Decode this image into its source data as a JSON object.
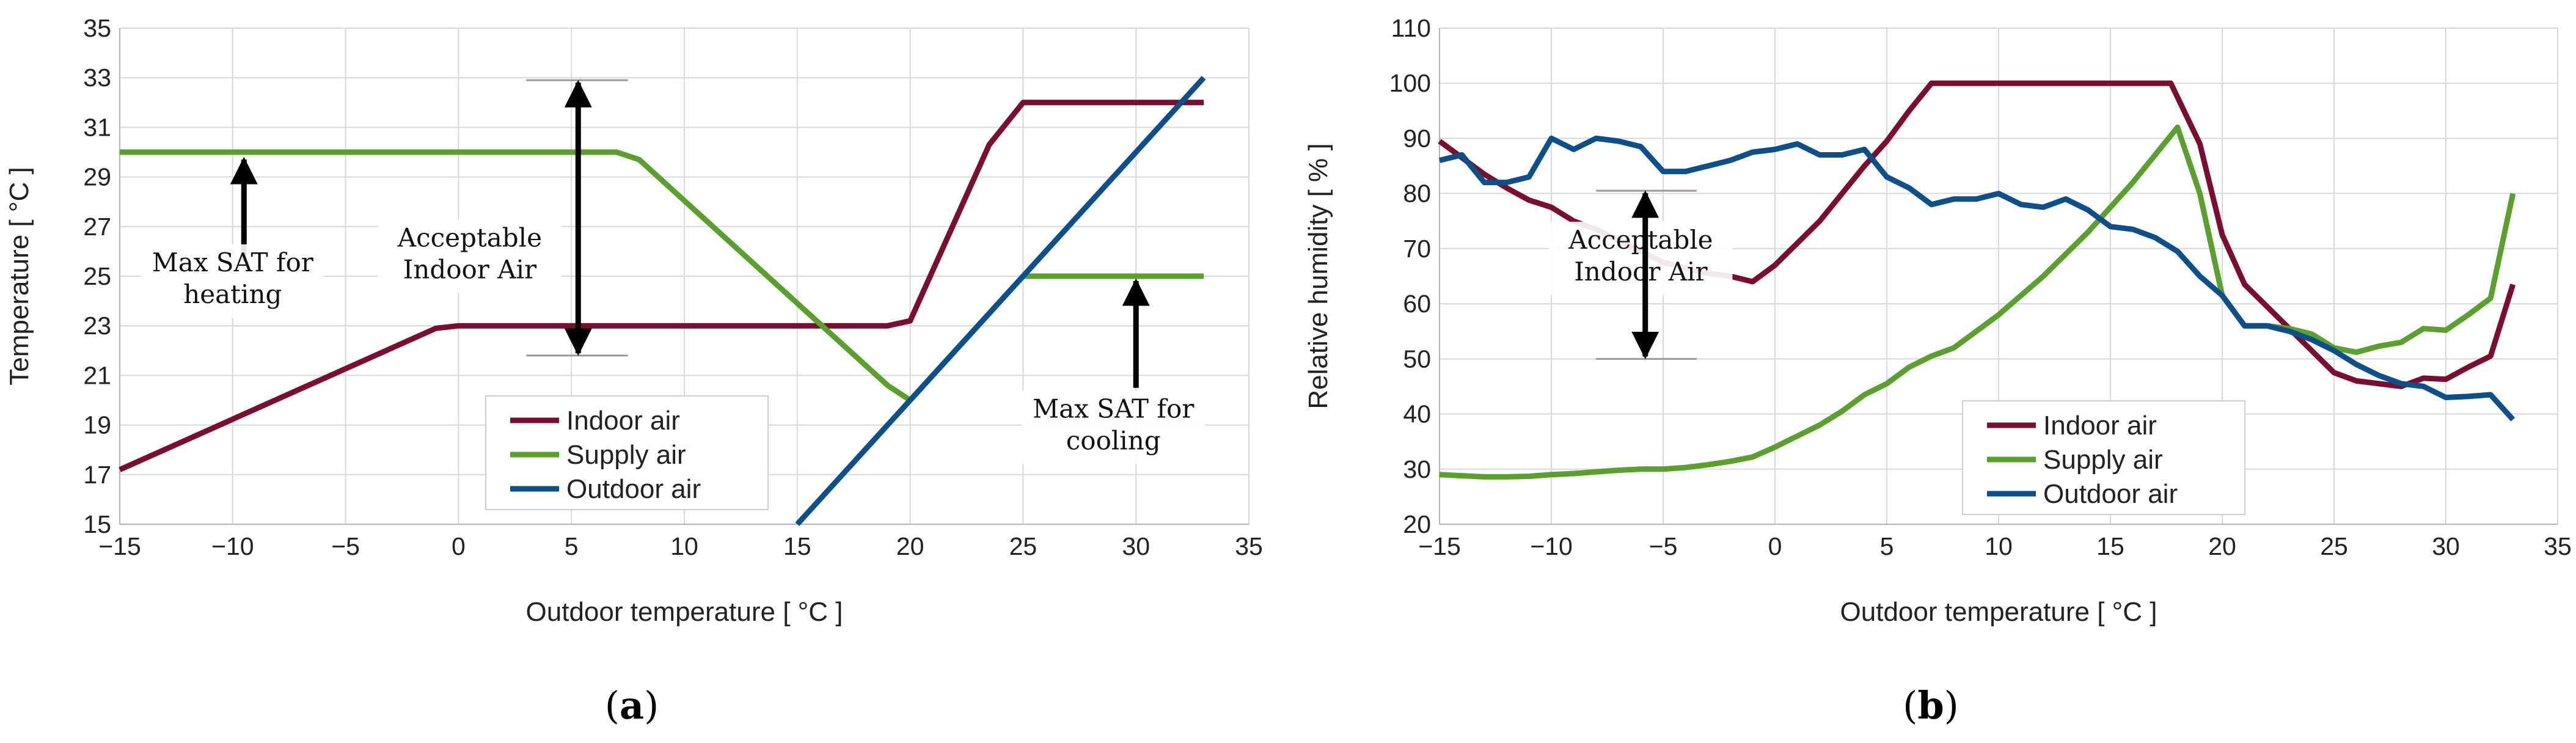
{
  "chart_data": [
    {
      "type": "line",
      "caption_letter": "a",
      "xlabel": "Outdoor temperature [ °C ]",
      "ylabel": "Temperature [ °C ]",
      "xlim": [
        -15,
        35
      ],
      "ylim": [
        15,
        35
      ],
      "xticks": [
        -15,
        -10,
        -5,
        0,
        5,
        10,
        15,
        20,
        25,
        30,
        35
      ],
      "yticks": [
        15,
        17,
        19,
        21,
        23,
        25,
        27,
        29,
        31,
        33,
        35
      ],
      "grid": true,
      "legend_position": "bottom-center",
      "series": [
        {
          "name": "Indoor air",
          "color": "#7b0d2e",
          "points": [
            [
              -15,
              17.2
            ],
            [
              -1,
              22.9
            ],
            [
              0,
              23
            ],
            [
              19,
              23
            ],
            [
              20,
              23.2
            ],
            [
              23.5,
              30.3
            ],
            [
              25,
              32
            ],
            [
              33,
              32
            ]
          ]
        },
        {
          "name": "Supply air",
          "color": "#5aa02c",
          "points": [
            [
              -15,
              30
            ],
            [
              7,
              30
            ],
            [
              8,
              29.7
            ],
            [
              19,
              20.6
            ],
            [
              20,
              20
            ],
            [
              25,
              25
            ],
            [
              33,
              25
            ]
          ]
        },
        {
          "name": "Outdoor air",
          "color": "#0d4f8b",
          "points": [
            [
              15,
              15
            ],
            [
              33,
              33
            ]
          ]
        }
      ],
      "annotations": [
        {
          "lines": [
            "Max SAT for",
            "heating"
          ],
          "x": -10,
          "y": 25.2,
          "arrow_from": [
            -9.5,
            25.6
          ],
          "arrow_to": [
            -9.5,
            29.7
          ]
        },
        {
          "lines": [
            "Acceptable",
            "Indoor Air"
          ],
          "x": 0.5,
          "y": 26.2
        },
        {
          "double_arrow": true,
          "x": 5.3,
          "y1": 21.8,
          "y2": 32.9,
          "bar_x1": 3,
          "bar_x2": 7.5
        },
        {
          "lines": [
            "Max SAT for",
            "cooling"
          ],
          "x": 29,
          "y": 19.3,
          "arrow_from": [
            30,
            20.5
          ],
          "arrow_to": [
            30,
            24.8
          ]
        }
      ]
    },
    {
      "type": "line",
      "caption_letter": "b",
      "xlabel": "Outdoor temperature [ °C ]",
      "ylabel": "Relative humidity [ % ]",
      "xlim": [
        -15,
        35
      ],
      "ylim": [
        20,
        110
      ],
      "xticks": [
        -15,
        -10,
        -5,
        0,
        5,
        10,
        15,
        20,
        25,
        30,
        35
      ],
      "yticks": [
        20,
        30,
        40,
        50,
        60,
        70,
        80,
        90,
        100,
        110
      ],
      "grid": true,
      "legend_position": "bottom-center",
      "series": [
        {
          "name": "Indoor air",
          "color": "#7b0d2e",
          "points": [
            [
              -15,
              89.5
            ],
            [
              -14,
              86.5
            ],
            [
              -13,
              83.5
            ],
            [
              -12,
              81
            ],
            [
              -11,
              78.8
            ],
            [
              -10,
              77.5
            ],
            [
              -9,
              75
            ],
            [
              -8,
              73.5
            ],
            [
              -7,
              71.5
            ],
            [
              -6,
              69.5
            ],
            [
              -5,
              67.5
            ],
            [
              -4,
              66.5
            ],
            [
              -3,
              65.5
            ],
            [
              -2,
              65
            ],
            [
              -1,
              64
            ],
            [
              0,
              67
            ],
            [
              1,
              71
            ],
            [
              2,
              75
            ],
            [
              3,
              80
            ],
            [
              4,
              85
            ],
            [
              5,
              89.5
            ],
            [
              6,
              95
            ],
            [
              7,
              100
            ],
            [
              17.7,
              100
            ],
            [
              19,
              89
            ],
            [
              20,
              72.5
            ],
            [
              21,
              63.5
            ],
            [
              22,
              59.5
            ],
            [
              23,
              55.5
            ],
            [
              24,
              51.5
            ],
            [
              25,
              47.5
            ],
            [
              26,
              46
            ],
            [
              27,
              45.5
            ],
            [
              28,
              45
            ],
            [
              29,
              46.5
            ],
            [
              30,
              46.3
            ],
            [
              31,
              48.5
            ],
            [
              32,
              50.5
            ],
            [
              33,
              63.5
            ]
          ]
        },
        {
          "name": "Supply air",
          "color": "#5aa02c",
          "points": [
            [
              -15,
              29
            ],
            [
              -14,
              28.8
            ],
            [
              -13,
              28.6
            ],
            [
              -12,
              28.6
            ],
            [
              -11,
              28.7
            ],
            [
              -10,
              29
            ],
            [
              -9,
              29.2
            ],
            [
              -8,
              29.5
            ],
            [
              -7,
              29.8
            ],
            [
              -6,
              30
            ],
            [
              -5,
              30
            ],
            [
              -4,
              30.3
            ],
            [
              -3,
              30.8
            ],
            [
              -2,
              31.4
            ],
            [
              -1,
              32.2
            ],
            [
              0,
              34
            ],
            [
              1,
              36
            ],
            [
              2,
              38
            ],
            [
              3,
              40.5
            ],
            [
              4,
              43.5
            ],
            [
              5,
              45.5
            ],
            [
              6,
              48.5
            ],
            [
              7,
              50.5
            ],
            [
              8,
              52
            ],
            [
              9,
              55
            ],
            [
              10,
              58
            ],
            [
              11,
              61.5
            ],
            [
              12,
              65
            ],
            [
              13,
              69
            ],
            [
              14,
              73
            ],
            [
              15,
              77.5
            ],
            [
              16,
              82
            ],
            [
              17,
              87
            ],
            [
              18,
              92
            ],
            [
              19,
              80
            ],
            [
              20,
              61.5
            ],
            [
              21,
              56
            ],
            [
              22,
              56
            ],
            [
              23,
              55.5
            ],
            [
              24,
              54.5
            ],
            [
              25,
              52
            ],
            [
              26,
              51.2
            ],
            [
              27,
              52.3
            ],
            [
              28,
              53
            ],
            [
              29,
              55.5
            ],
            [
              30,
              55.2
            ],
            [
              31,
              58
            ],
            [
              32,
              61
            ],
            [
              33,
              80
            ]
          ]
        },
        {
          "name": "Outdoor air",
          "color": "#0d4f8b",
          "points": [
            [
              -15,
              86
            ],
            [
              -14,
              87
            ],
            [
              -13,
              82
            ],
            [
              -12,
              82
            ],
            [
              -11,
              83
            ],
            [
              -10,
              90
            ],
            [
              -9,
              88
            ],
            [
              -8,
              90
            ],
            [
              -7,
              89.5
            ],
            [
              -6,
              88.5
            ],
            [
              -5,
              84
            ],
            [
              -4,
              84
            ],
            [
              -3,
              85
            ],
            [
              -2,
              86
            ],
            [
              -1,
              87.5
            ],
            [
              0,
              88
            ],
            [
              1,
              89
            ],
            [
              2,
              87
            ],
            [
              3,
              87
            ],
            [
              4,
              88
            ],
            [
              5,
              83
            ],
            [
              6,
              81
            ],
            [
              7,
              78
            ],
            [
              8,
              79
            ],
            [
              9,
              79
            ],
            [
              10,
              80
            ],
            [
              11,
              78
            ],
            [
              12,
              77.5
            ],
            [
              13,
              79
            ],
            [
              14,
              77
            ],
            [
              15,
              74
            ],
            [
              16,
              73.5
            ],
            [
              17,
              72
            ],
            [
              18,
              69.5
            ],
            [
              19,
              65
            ],
            [
              20,
              61.5
            ],
            [
              21,
              56
            ],
            [
              22,
              56
            ],
            [
              23,
              55
            ],
            [
              24,
              53.5
            ],
            [
              25,
              51.5
            ],
            [
              26,
              49
            ],
            [
              27,
              47
            ],
            [
              28,
              45.5
            ],
            [
              29,
              45
            ],
            [
              30,
              43
            ],
            [
              31,
              43.2
            ],
            [
              32,
              43.5
            ],
            [
              33,
              39
            ]
          ]
        }
      ],
      "annotations": [
        {
          "lines": [
            "Acceptable",
            "Indoor Air"
          ],
          "x": -6,
          "y": 70
        },
        {
          "double_arrow": true,
          "x": -5.8,
          "y1": 50,
          "y2": 80.5,
          "bar_x1": -8,
          "bar_x2": -3.5
        }
      ]
    }
  ]
}
